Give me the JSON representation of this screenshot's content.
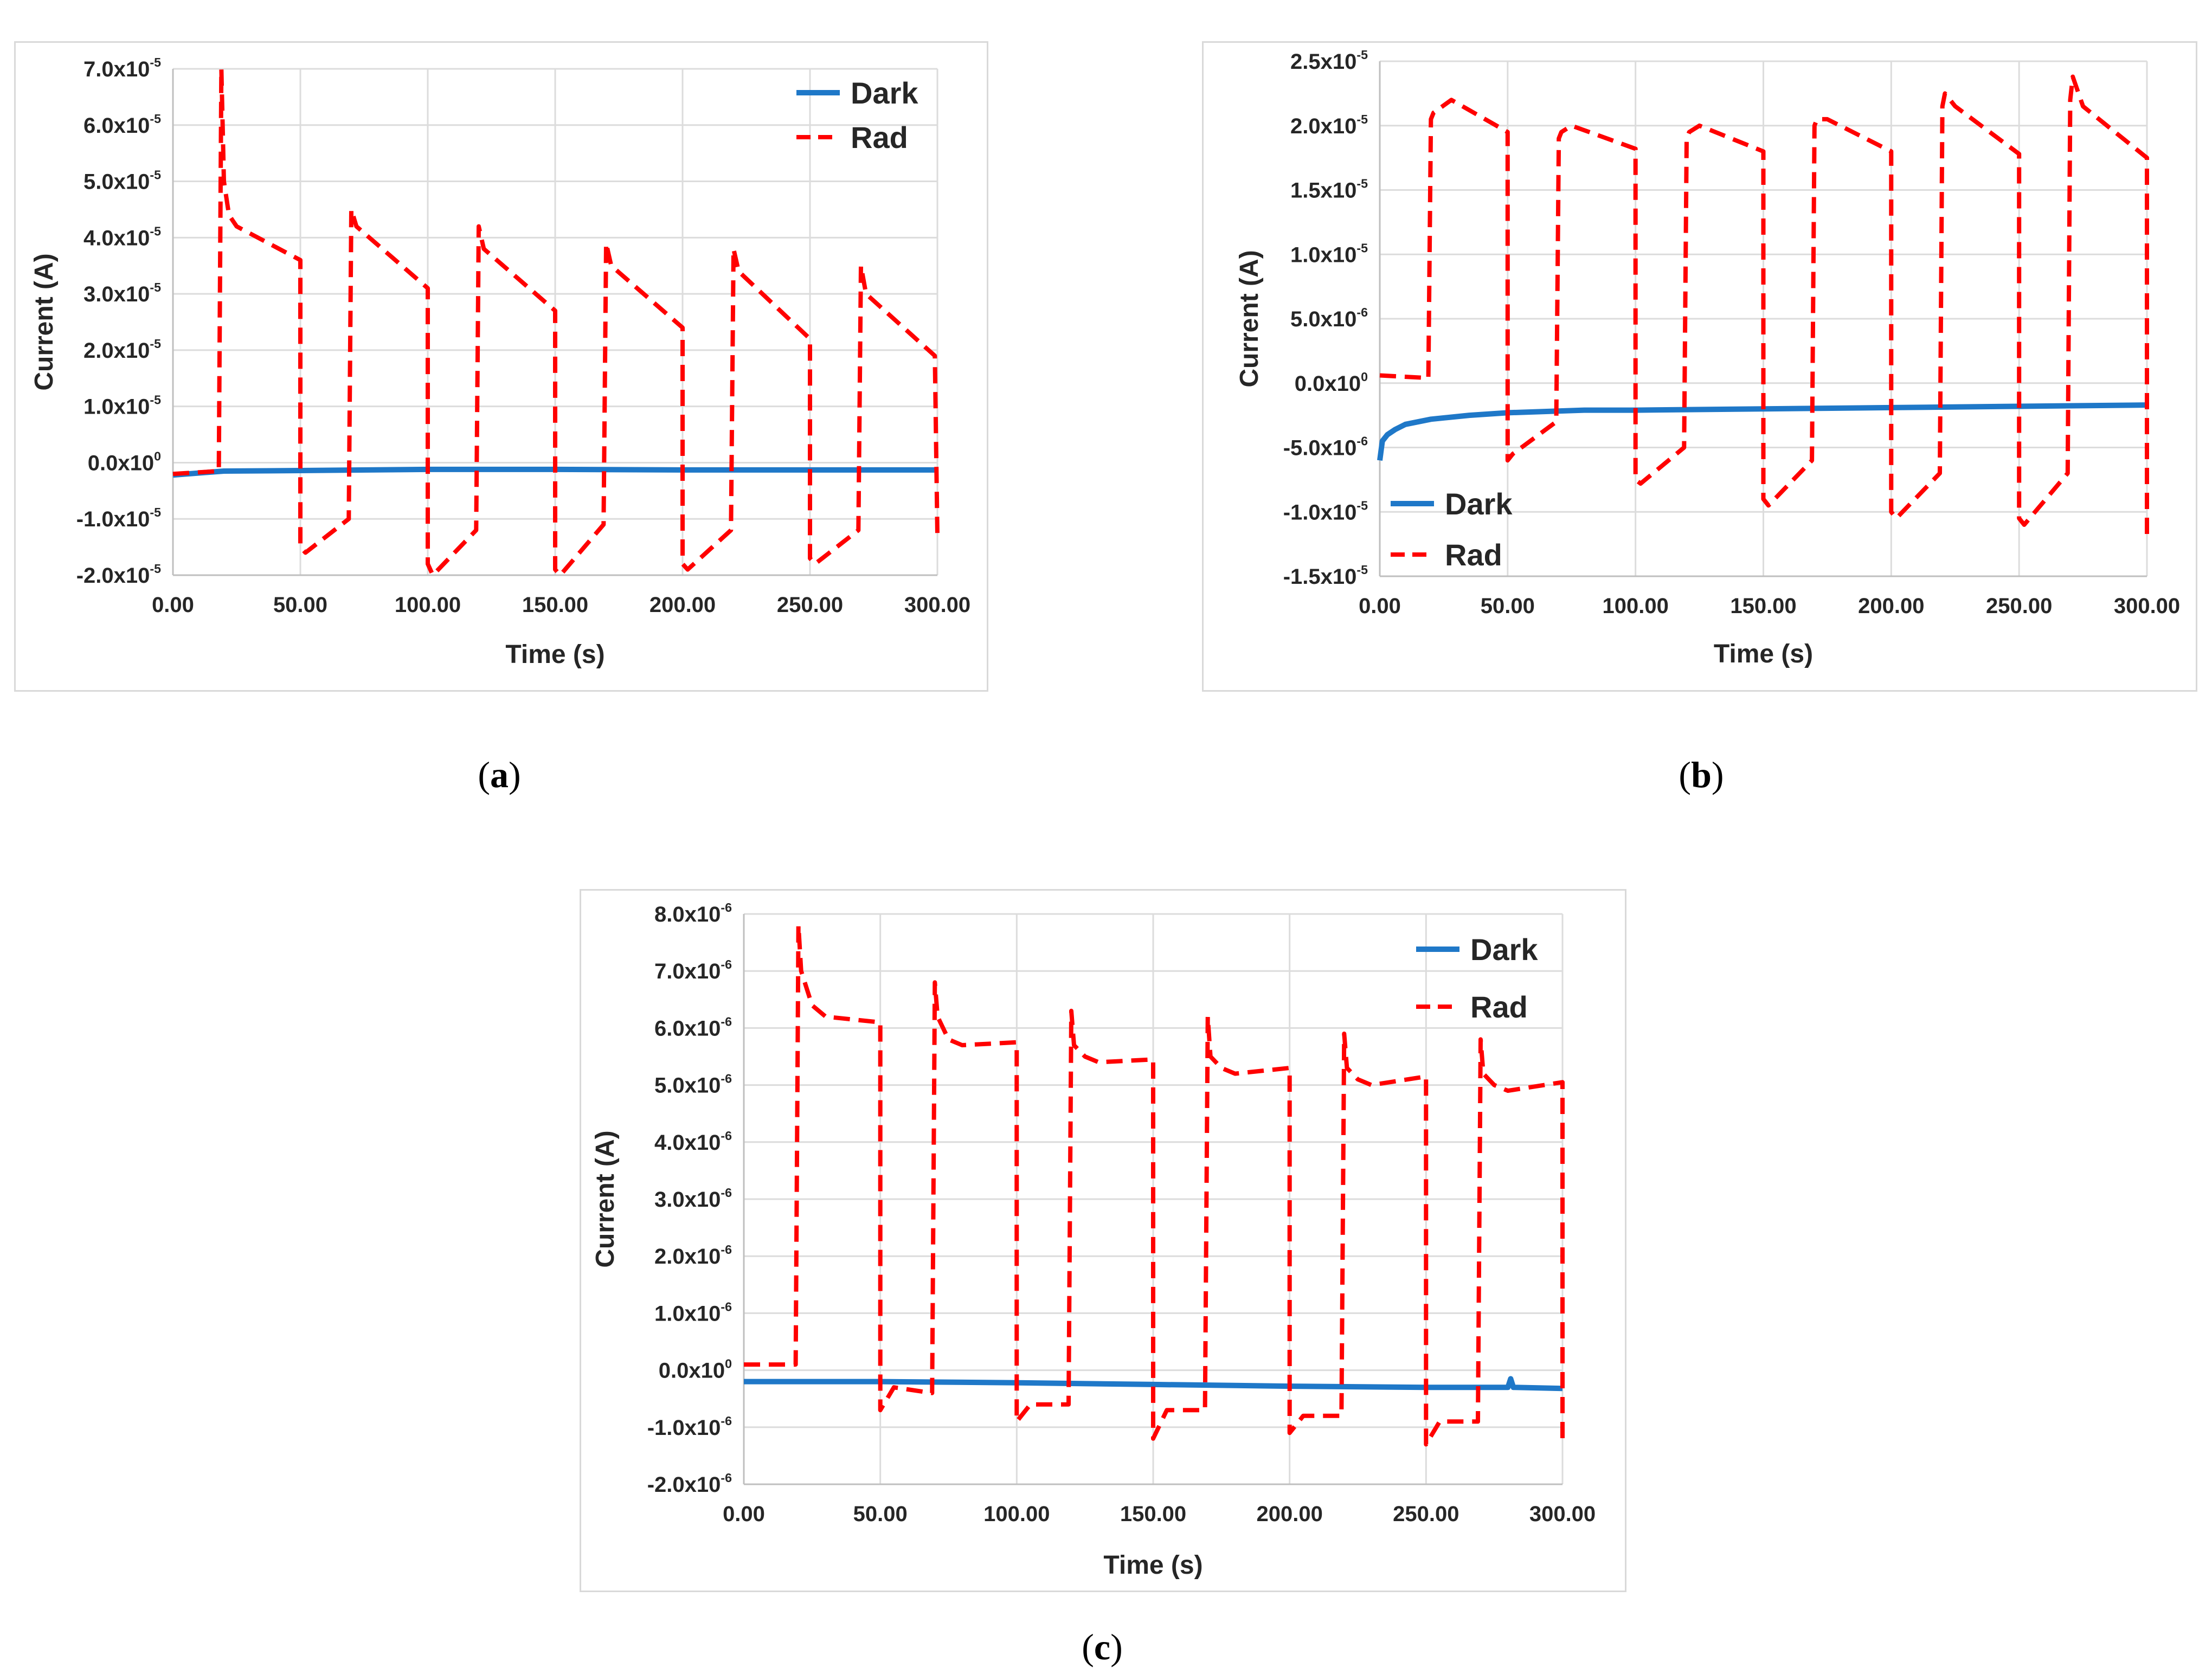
{
  "colors": {
    "dark": "#1f78c8",
    "rad": "#ff0000",
    "grid": "#dcdcdc",
    "axis": "#bfbfbf"
  },
  "chart_data": [
    {
      "id": "a",
      "caption": {
        "open": "(",
        "letter": "a",
        "close": ")"
      },
      "type": "line",
      "xlabel": "Time (s)",
      "ylabel": "Current (A)",
      "xlim": [
        0,
        300
      ],
      "ylim": [
        -2e-05,
        7e-05
      ],
      "x_ticks": [
        "0.00",
        "50.00",
        "100.00",
        "150.00",
        "200.00",
        "250.00",
        "300.00"
      ],
      "y_ticks": [
        {
          "mant": "7.0x10",
          "exp": "-5"
        },
        {
          "mant": "6.0x10",
          "exp": "-5"
        },
        {
          "mant": "5.0x10",
          "exp": "-5"
        },
        {
          "mant": "4.0x10",
          "exp": "-5"
        },
        {
          "mant": "3.0x10",
          "exp": "-5"
        },
        {
          "mant": "2.0x10",
          "exp": "-5"
        },
        {
          "mant": "1.0x10",
          "exp": "-5"
        },
        {
          "mant": "0.0x10",
          "exp": "0"
        },
        {
          "mant": "-1.0x10",
          "exp": "-5"
        },
        {
          "mant": "-2.0x10",
          "exp": "-5"
        }
      ],
      "legend": {
        "position": "top-right",
        "dark": "Dark",
        "rad": "Rad"
      },
      "series": [
        {
          "name": "Dark",
          "style": "solid",
          "color": "#1f78c8",
          "x": [
            0,
            20,
            50,
            100,
            150,
            200,
            250,
            300
          ],
          "y": [
            -2.2e-06,
            -1.5e-06,
            -1.4e-06,
            -1.2e-06,
            -1.2e-06,
            -1.3e-06,
            -1.3e-06,
            -1.3e-06
          ]
        },
        {
          "name": "Rad",
          "style": "dashed",
          "color": "#ff0000",
          "x": [
            0,
            18,
            19,
            20,
            22,
            25,
            50,
            50,
            52,
            69,
            70,
            72,
            100,
            100,
            102,
            119,
            120,
            122,
            150,
            150,
            152,
            169,
            170,
            172,
            200,
            200,
            202,
            219,
            220,
            222,
            250,
            250,
            252,
            269,
            270,
            272,
            299,
            300
          ],
          "y": [
            -2e-06,
            -1.5e-06,
            7e-05,
            5e-05,
            4.4e-05,
            4.2e-05,
            3.6e-05,
            -1.5e-05,
            -1.6e-05,
            -1e-05,
            4.5e-05,
            4.2e-05,
            3.1e-05,
            -1.8e-05,
            -2e-05,
            -1.2e-05,
            4.2e-05,
            3.8e-05,
            2.7e-05,
            -1.9e-05,
            -2e-05,
            -1.1e-05,
            3.9e-05,
            3.5e-05,
            2.4e-05,
            -1.8e-05,
            -1.9e-05,
            -1.2e-05,
            3.8e-05,
            3.4e-05,
            2.2e-05,
            -1.7e-05,
            -1.8e-05,
            -1.2e-05,
            3.5e-05,
            3e-05,
            1.9e-05,
            -1.3e-05
          ]
        }
      ]
    },
    {
      "id": "b",
      "caption": {
        "open": "(",
        "letter": "b",
        "close": ")"
      },
      "type": "line",
      "xlabel": "Time (s)",
      "ylabel": "Current (A)",
      "xlim": [
        0,
        300
      ],
      "ylim": [
        -1.5e-05,
        2.5e-05
      ],
      "x_ticks": [
        "0.00",
        "50.00",
        "100.00",
        "150.00",
        "200.00",
        "250.00",
        "300.00"
      ],
      "y_ticks": [
        {
          "mant": "2.5x10",
          "exp": "-5"
        },
        {
          "mant": "2.0x10",
          "exp": "-5"
        },
        {
          "mant": "1.5x10",
          "exp": "-5"
        },
        {
          "mant": "1.0x10",
          "exp": "-5"
        },
        {
          "mant": "5.0x10",
          "exp": "-6"
        },
        {
          "mant": "0.0x10",
          "exp": "0"
        },
        {
          "mant": "-5.0x10",
          "exp": "-6"
        },
        {
          "mant": "-1.0x10",
          "exp": "-5"
        },
        {
          "mant": "-1.5x10",
          "exp": "-5"
        }
      ],
      "legend": {
        "position": "bottom-left",
        "dark": "Dark",
        "rad": "Rad"
      },
      "series": [
        {
          "name": "Dark",
          "style": "solid",
          "color": "#1f78c8",
          "x": [
            0,
            1,
            3,
            6,
            10,
            20,
            35,
            50,
            80,
            100,
            150,
            200,
            250,
            300
          ],
          "y": [
            -6e-06,
            -4.5e-06,
            -4e-06,
            -3.6e-06,
            -3.2e-06,
            -2.8e-06,
            -2.5e-06,
            -2.3e-06,
            -2.1e-06,
            -2.1e-06,
            -2e-06,
            -1.9e-06,
            -1.8e-06,
            -1.7e-06
          ]
        },
        {
          "name": "Rad",
          "style": "dashed",
          "color": "#ff0000",
          "x": [
            0,
            19,
            20,
            21,
            28,
            50,
            50,
            52,
            69,
            70,
            71,
            75,
            100,
            100,
            102,
            119,
            120,
            121,
            125,
            150,
            150,
            152,
            169,
            170,
            171,
            175,
            200,
            200,
            202,
            219,
            220,
            221,
            225,
            250,
            250,
            252,
            269,
            270,
            271,
            275,
            300,
            300
          ],
          "y": [
            6e-07,
            4e-07,
            2.05e-05,
            2.1e-05,
            2.2e-05,
            1.95e-05,
            -6e-06,
            -5.5e-06,
            -3e-06,
            1.9e-05,
            1.95e-05,
            2e-05,
            1.82e-05,
            -7.5e-06,
            -7.8e-06,
            -5e-06,
            1.9e-05,
            1.95e-05,
            2e-05,
            1.8e-05,
            -9e-06,
            -9.5e-06,
            -6e-06,
            2e-05,
            2.05e-05,
            2.05e-05,
            1.8e-05,
            -1e-05,
            -1.05e-05,
            -7e-06,
            2.15e-05,
            2.25e-05,
            2.15e-05,
            1.78e-05,
            -1.05e-05,
            -1.1e-05,
            -7e-06,
            2.2e-05,
            2.38e-05,
            2.15e-05,
            1.75e-05,
            -1.2e-05
          ]
        }
      ]
    },
    {
      "id": "c",
      "caption": {
        "open": "(",
        "letter": "c",
        "close": ")"
      },
      "type": "line",
      "xlabel": "Time (s)",
      "ylabel": "Current (A)",
      "xlim": [
        0,
        300
      ],
      "ylim": [
        -2e-06,
        8e-06
      ],
      "x_ticks": [
        "0.00",
        "50.00",
        "100.00",
        "150.00",
        "200.00",
        "250.00",
        "300.00"
      ],
      "y_ticks": [
        {
          "mant": "8.0x10",
          "exp": "-6"
        },
        {
          "mant": "7.0x10",
          "exp": "-6"
        },
        {
          "mant": "6.0x10",
          "exp": "-6"
        },
        {
          "mant": "5.0x10",
          "exp": "-6"
        },
        {
          "mant": "4.0x10",
          "exp": "-6"
        },
        {
          "mant": "3.0x10",
          "exp": "-6"
        },
        {
          "mant": "2.0x10",
          "exp": "-6"
        },
        {
          "mant": "1.0x10",
          "exp": "-6"
        },
        {
          "mant": "0.0x10",
          "exp": "0"
        },
        {
          "mant": "-1.0x10",
          "exp": "-6"
        },
        {
          "mant": "-2.0x10",
          "exp": "-6"
        }
      ],
      "legend": {
        "position": "top-right",
        "dark": "Dark",
        "rad": "Rad"
      },
      "series": [
        {
          "name": "Dark",
          "style": "solid",
          "color": "#1f78c8",
          "x": [
            0,
            50,
            100,
            150,
            200,
            250,
            280,
            281,
            282,
            300
          ],
          "y": [
            -2e-07,
            -2e-07,
            -2.2e-07,
            -2.5e-07,
            -2.8e-07,
            -3e-07,
            -3e-07,
            -1.5e-07,
            -3e-07,
            -3.2e-07
          ]
        },
        {
          "name": "Rad",
          "style": "dashed",
          "color": "#ff0000",
          "x": [
            0,
            19,
            20,
            21,
            25,
            30,
            50,
            50,
            55,
            69,
            70,
            71,
            75,
            80,
            100,
            100,
            105,
            119,
            120,
            121,
            125,
            130,
            150,
            150,
            155,
            169,
            170,
            171,
            175,
            180,
            200,
            200,
            205,
            219,
            220,
            221,
            225,
            230,
            250,
            250,
            255,
            269,
            270,
            271,
            275,
            280,
            300,
            300
          ],
          "y": [
            1e-07,
            1e-07,
            7.8e-06,
            7e-06,
            6.4e-06,
            6.2e-06,
            6.1e-06,
            -7e-07,
            -3e-07,
            -4e-07,
            6.8e-06,
            6.2e-06,
            5.8e-06,
            5.7e-06,
            5.75e-06,
            -9e-07,
            -6e-07,
            -6e-07,
            6.3e-06,
            5.7e-06,
            5.5e-06,
            5.4e-06,
            5.45e-06,
            -1.2e-06,
            -7e-07,
            -7e-07,
            6.2e-06,
            5.5e-06,
            5.3e-06,
            5.2e-06,
            5.3e-06,
            -1.1e-06,
            -8e-07,
            -8e-07,
            5.9e-06,
            5.3e-06,
            5.1e-06,
            5e-06,
            5.15e-06,
            -1.3e-06,
            -9e-07,
            -9e-07,
            5.8e-06,
            5.2e-06,
            5e-06,
            4.9e-06,
            5.05e-06,
            -1.3e-06
          ]
        }
      ]
    }
  ]
}
